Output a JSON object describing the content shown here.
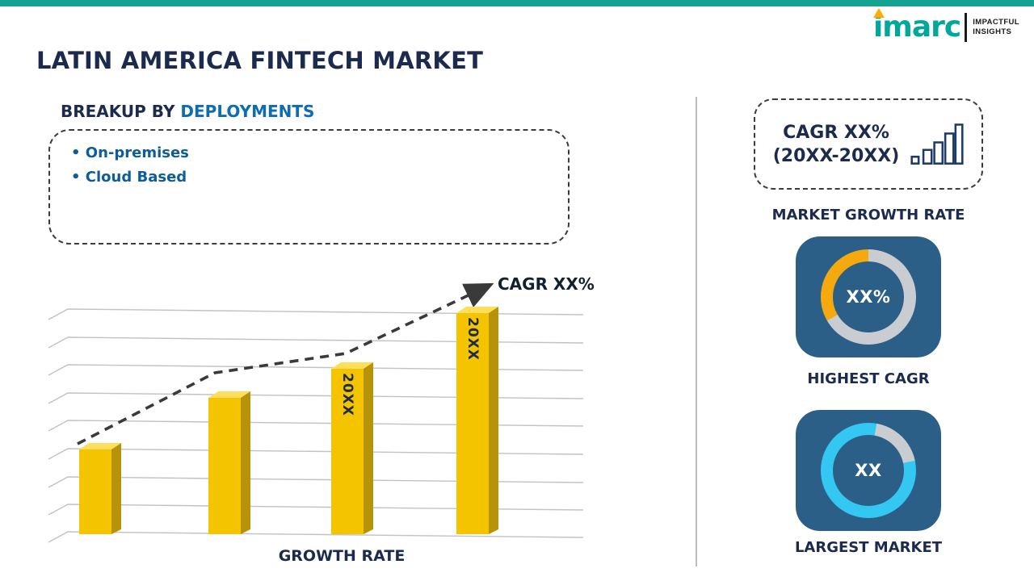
{
  "colors": {
    "topbar_teal": "#14A391",
    "brand_teal": "#00A79B",
    "brand_flame_orange": "#F9B000",
    "heading_navy": "#1C2B4D",
    "accent_blue": "#0E6CB0",
    "bullet_blue": "#0D5C9B",
    "bar_front_gold": "#F5C400",
    "bar_side_dark": "#B8930A",
    "bar_top_light": "#FFDE5C",
    "gridline_gray": "#C2C2C2",
    "trend_dark": "#3A3A3A",
    "tile_steel_blue": "#2B5F88",
    "ring_track_gray": "#C9CDD1",
    "ring_gold": "#F4A90F",
    "ring_cyan": "#33C7F2"
  },
  "logo": {
    "brand": "imarc",
    "tagline1": "IMPACTFUL",
    "tagline2": "INSIGHTS"
  },
  "title": "LATIN AMERICA FINTECH MARKET",
  "breakup": {
    "title_prefix": "BREAKUP BY ",
    "title_accent": "DEPLOYMENTS",
    "items": [
      "On-premises",
      "Cloud Based"
    ]
  },
  "chart_data": {
    "type": "bar",
    "title": "",
    "xlabel": "GROWTH RATE",
    "ylabel": "",
    "categories": [
      "bar-1",
      "bar-2",
      "bar-3",
      "bar-4"
    ],
    "bar_labels": [
      "",
      "",
      "20XX",
      "20XX"
    ],
    "values": [
      38,
      61,
      74,
      99
    ],
    "values_note": "relative bar heights in % of plot height; no numeric axis values shown in image",
    "annotation": "CAGR XX%",
    "trendline_style": "dashed arrow rising left-to-right",
    "gridlines": 9,
    "legend": "none"
  },
  "right_panel": {
    "cagr_box": {
      "line1": "CAGR XX%",
      "line2": "(20XX-20XX)"
    },
    "market_growth_label": "MARKET GROWTH RATE",
    "highest_cagr": {
      "value": "XX%",
      "caption": "HIGHEST CAGR",
      "segment_color": "#F4A90F",
      "track_color": "#C9CDD1",
      "segment_start_deg": 240,
      "segment_sweep_deg": 120
    },
    "largest_market": {
      "value": "XX",
      "caption": "LARGEST MARKET",
      "segment_color": "#33C7F2",
      "track_color": "#C9CDD1",
      "track_start_deg": 10,
      "track_end_deg": 78
    }
  }
}
